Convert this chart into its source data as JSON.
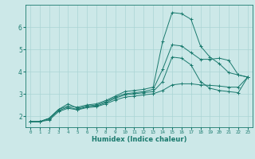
{
  "xlabel": "Humidex (Indice chaleur)",
  "ylabel": "",
  "background_color": "#cce8e8",
  "grid_color": "#aad4d4",
  "line_color": "#1a7a6e",
  "xlim": [
    -0.5,
    23.5
  ],
  "ylim": [
    1.5,
    7.0
  ],
  "xticks": [
    0,
    1,
    2,
    3,
    4,
    5,
    6,
    7,
    8,
    9,
    10,
    11,
    12,
    13,
    14,
    15,
    16,
    17,
    18,
    19,
    20,
    21,
    22,
    23
  ],
  "yticks": [
    2,
    3,
    4,
    5,
    6
  ],
  "series": [
    {
      "x": [
        0,
        1,
        2,
        3,
        4,
        5,
        6,
        7,
        8,
        9,
        10,
        11,
        12,
        13,
        14,
        15,
        16,
        17,
        18,
        19,
        20,
        21,
        22,
        23
      ],
      "y": [
        1.75,
        1.75,
        1.9,
        2.3,
        2.45,
        2.4,
        2.5,
        2.55,
        2.7,
        2.9,
        3.1,
        3.15,
        3.2,
        3.3,
        5.35,
        6.65,
        6.6,
        6.35,
        5.15,
        4.65,
        4.35,
        3.95,
        3.85,
        3.75
      ]
    },
    {
      "x": [
        0,
        1,
        2,
        3,
        4,
        5,
        6,
        7,
        8,
        9,
        10,
        11,
        12,
        13,
        14,
        15,
        16,
        17,
        18,
        19,
        20,
        21,
        22,
        23
      ],
      "y": [
        1.75,
        1.75,
        1.9,
        2.3,
        2.55,
        2.35,
        2.45,
        2.5,
        2.65,
        2.85,
        3.0,
        3.05,
        3.1,
        3.2,
        4.1,
        5.2,
        5.15,
        4.85,
        4.55,
        4.55,
        4.6,
        4.5,
        3.85,
        3.75
      ]
    },
    {
      "x": [
        0,
        1,
        2,
        3,
        4,
        5,
        6,
        7,
        8,
        9,
        10,
        11,
        12,
        13,
        14,
        15,
        16,
        17,
        18,
        19,
        20,
        21,
        22,
        23
      ],
      "y": [
        1.75,
        1.75,
        1.87,
        2.25,
        2.4,
        2.3,
        2.42,
        2.45,
        2.6,
        2.8,
        2.95,
        3.0,
        3.05,
        3.1,
        3.55,
        4.65,
        4.6,
        4.3,
        3.55,
        3.25,
        3.15,
        3.1,
        3.05,
        3.75
      ]
    },
    {
      "x": [
        0,
        1,
        2,
        3,
        4,
        5,
        6,
        7,
        8,
        9,
        10,
        11,
        12,
        13,
        14,
        15,
        16,
        17,
        18,
        19,
        20,
        21,
        22,
        23
      ],
      "y": [
        1.75,
        1.75,
        1.82,
        2.2,
        2.35,
        2.28,
        2.38,
        2.42,
        2.55,
        2.72,
        2.85,
        2.9,
        2.95,
        3.0,
        3.15,
        3.4,
        3.45,
        3.45,
        3.4,
        3.38,
        3.35,
        3.3,
        3.3,
        3.75
      ]
    }
  ]
}
